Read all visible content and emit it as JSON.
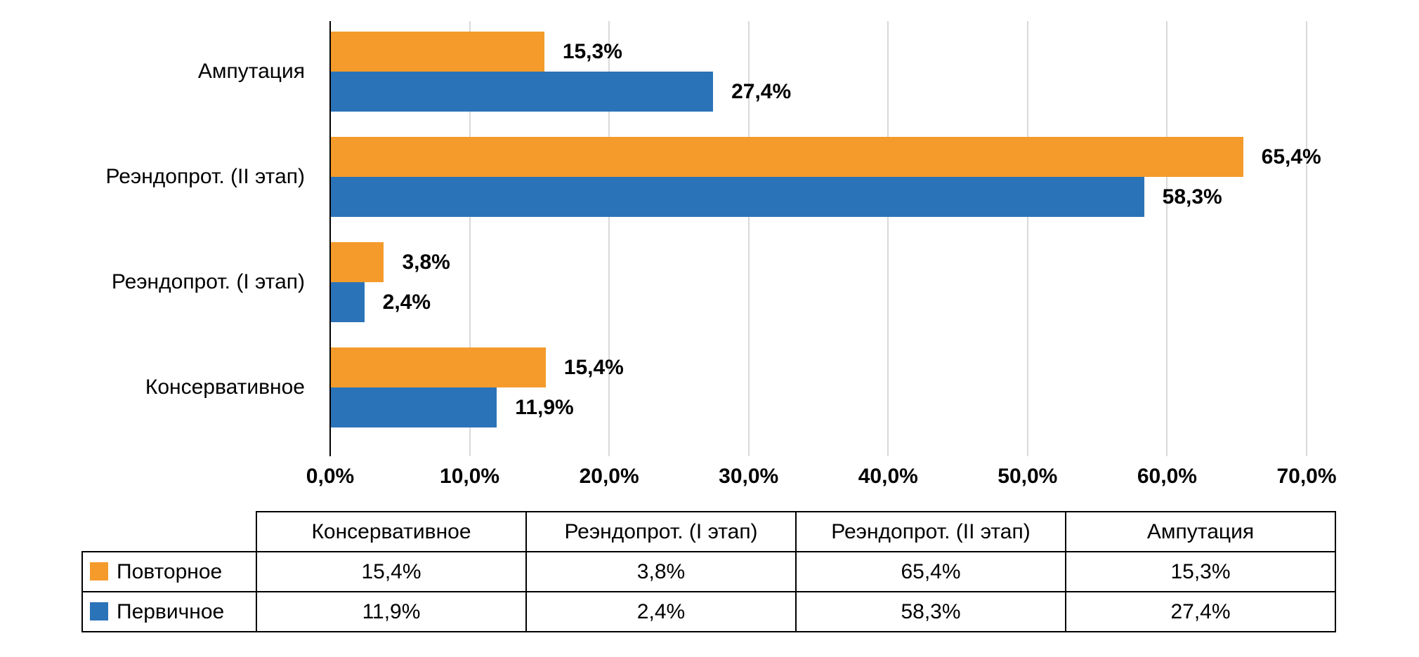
{
  "chart_data": {
    "type": "bar",
    "orientation": "horizontal",
    "title": "",
    "categories": [
      "Ампутация",
      "Реэндопрот. (II этап)",
      "Реэндопрот. (I этап)",
      "Консервативное"
    ],
    "series": [
      {
        "name": "Повторное",
        "color": "#F49B2C",
        "values": [
          15.3,
          65.4,
          3.8,
          15.4
        ],
        "labels": [
          "15,3%",
          "65,4%",
          "3,8%",
          "15,4%"
        ]
      },
      {
        "name": "Первичное",
        "color": "#2A73B8",
        "values": [
          27.4,
          58.3,
          2.4,
          11.9
        ],
        "labels": [
          "27,4%",
          "58,3%",
          "2,4%",
          "11,9%"
        ]
      }
    ],
    "xlim": [
      0,
      70
    ],
    "x_ticks": [
      "0,0%",
      "10,0%",
      "20,0%",
      "30,0%",
      "40,0%",
      "50,0%",
      "60,0%",
      "70,0%"
    ],
    "grid": true,
    "gridline_color": "#D9D9D9",
    "axis_color": "#000000",
    "legend_position": "table-below"
  },
  "table": {
    "headers": [
      "Консервативное",
      "Реэндопрот. (I этап)",
      "Реэндопрот. (II этап)",
      "Ампутация"
    ],
    "rows": [
      {
        "name": "Повторное",
        "color": "#F49B2C",
        "values": [
          "15,4%",
          "3,8%",
          "65,4%",
          "15,3%"
        ]
      },
      {
        "name": "Первичное",
        "color": "#2A73B8",
        "values": [
          "11,9%",
          "2,4%",
          "58,3%",
          "27,4%"
        ]
      }
    ]
  }
}
